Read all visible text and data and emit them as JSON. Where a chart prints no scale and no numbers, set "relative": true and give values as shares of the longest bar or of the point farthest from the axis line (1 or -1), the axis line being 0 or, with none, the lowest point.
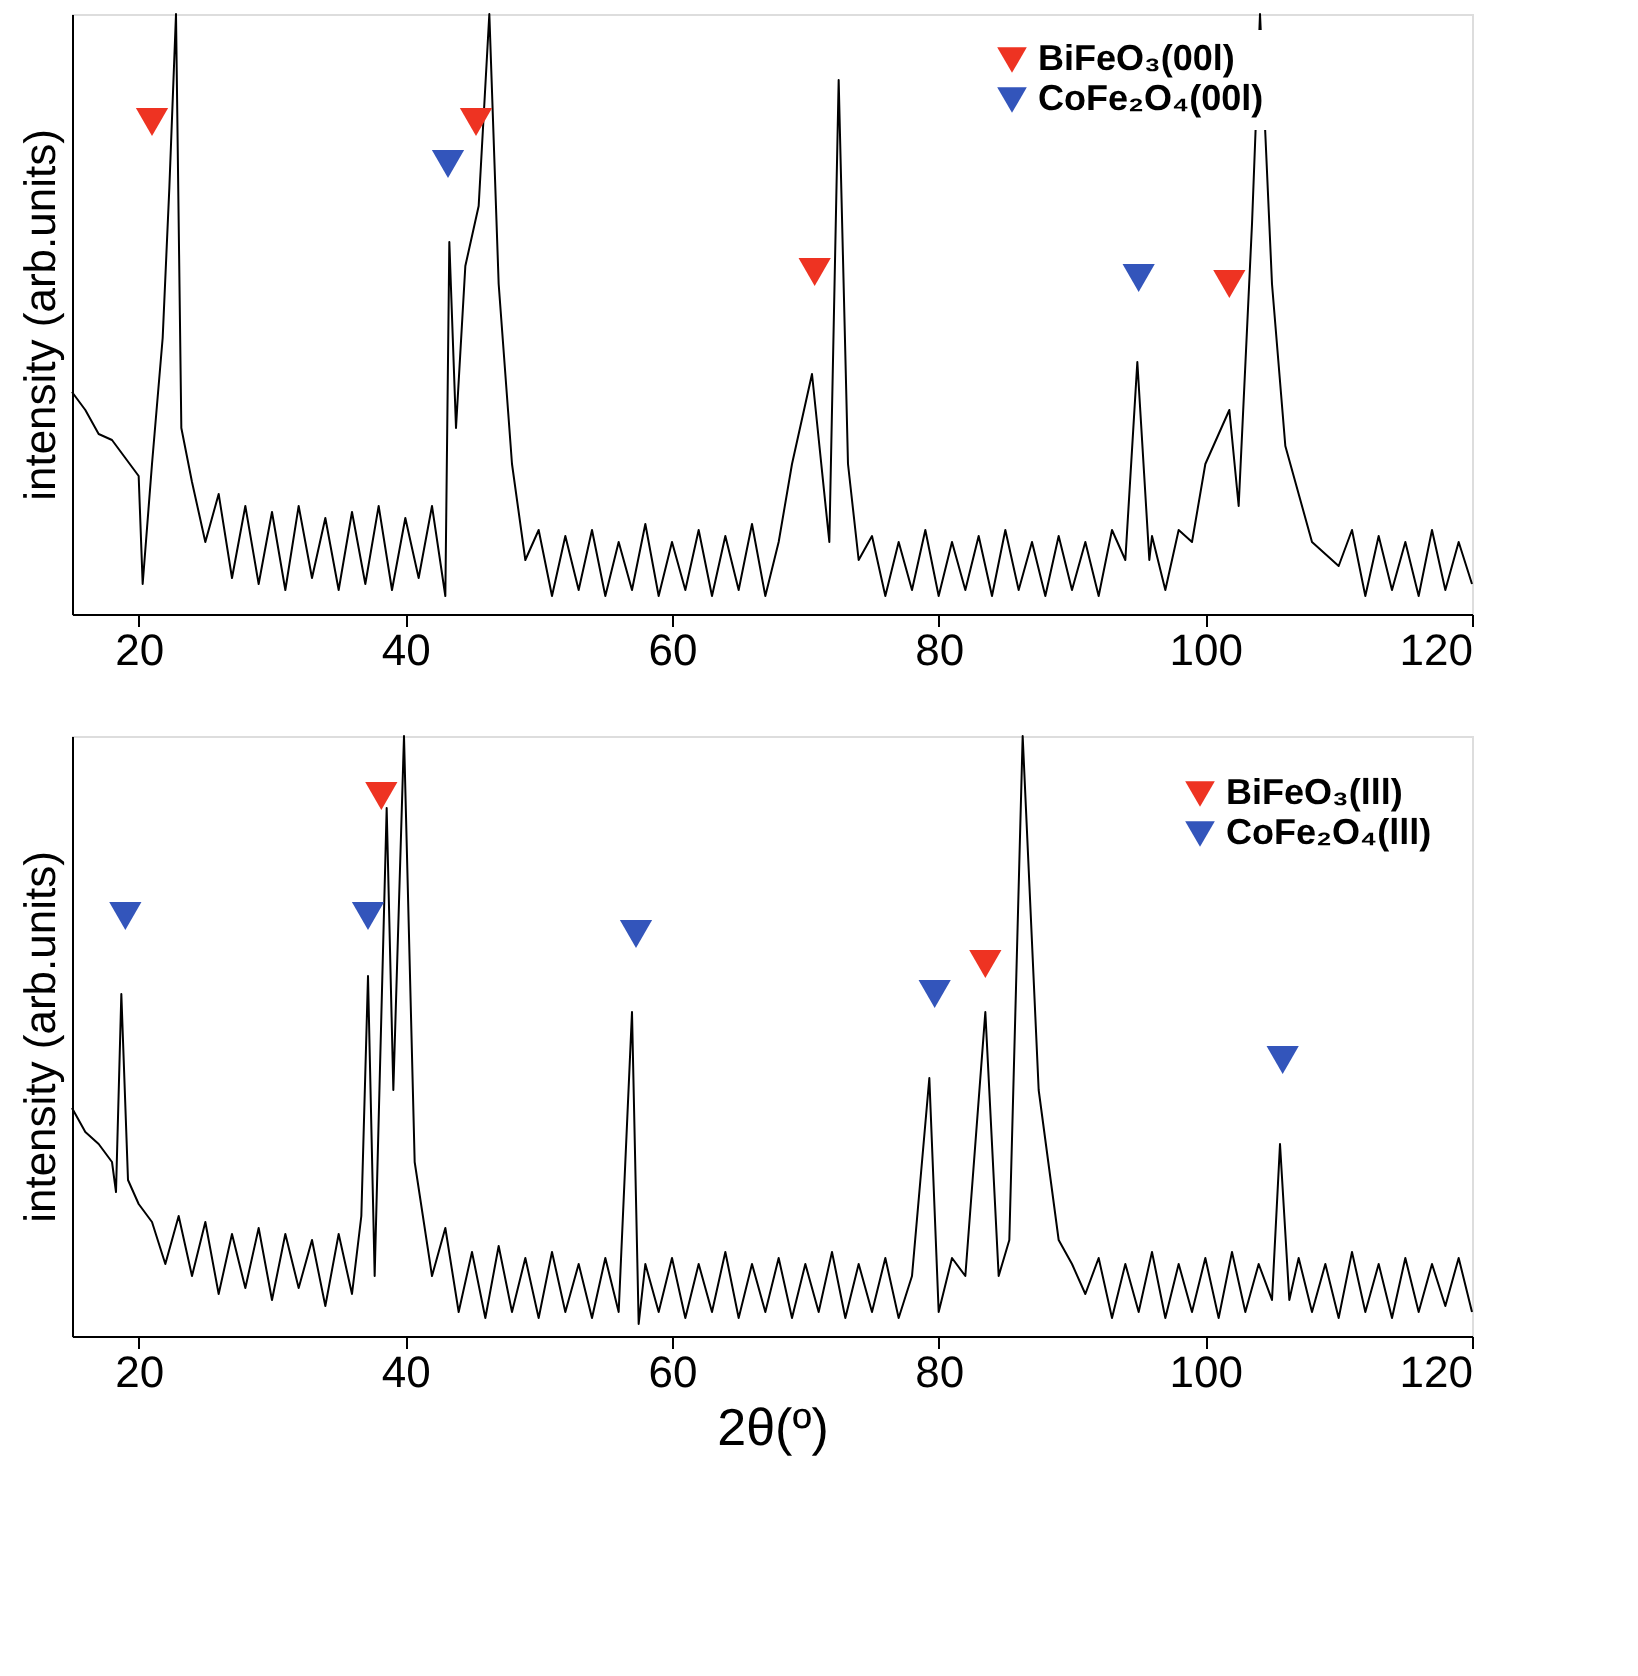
{
  "chart_data": [
    {
      "type": "line",
      "relative": true,
      "ylabel": "intensity (arb.units)",
      "xlim": [
        15,
        120
      ],
      "xticks": [
        20,
        40,
        60,
        80,
        100,
        120
      ],
      "grid": false,
      "legend": "top right",
      "series": [
        {
          "color": "#000000",
          "line_style": "solid",
          "marker": "none",
          "x": [
            15,
            16,
            17,
            18,
            19,
            20,
            20.3,
            21,
            21.8,
            22.3,
            22.8,
            23.2,
            24,
            25,
            26,
            27,
            28,
            29,
            30,
            31,
            32,
            33,
            34,
            35,
            36,
            37,
            38,
            39,
            40,
            41,
            42,
            43,
            43.3,
            43.8,
            44.5,
            45.5,
            46.3,
            47,
            48,
            49,
            50,
            51,
            52,
            53,
            54,
            55,
            56,
            57,
            58,
            59,
            60,
            61,
            62,
            63,
            64,
            65,
            66,
            67,
            68,
            69,
            70.5,
            71.8,
            72.5,
            73.2,
            74,
            75,
            76,
            77,
            78,
            79,
            80,
            81,
            82,
            83,
            84,
            85,
            86,
            87,
            88,
            89,
            90,
            91,
            92,
            93,
            94,
            94.9,
            95.8,
            96,
            97,
            98,
            99,
            100,
            101.8,
            102.5,
            103.5,
            104.1,
            105,
            106,
            108,
            110,
            111,
            112,
            113,
            114,
            115,
            116,
            117,
            118,
            119,
            120
          ],
          "values": [
            0.37,
            0.34,
            0.3,
            0.29,
            0.26,
            0.23,
            0.05,
            0.25,
            0.46,
            0.71,
            1,
            0.31,
            0.22,
            0.12,
            0.2,
            0.06,
            0.18,
            0.05,
            0.17,
            0.04,
            0.18,
            0.06,
            0.16,
            0.04,
            0.17,
            0.05,
            0.18,
            0.04,
            0.16,
            0.06,
            0.18,
            0.03,
            0.62,
            0.31,
            0.58,
            0.68,
            1,
            0.55,
            0.25,
            0.09,
            0.14,
            0.03,
            0.13,
            0.04,
            0.14,
            0.03,
            0.12,
            0.04,
            0.15,
            0.03,
            0.12,
            0.04,
            0.14,
            0.03,
            0.13,
            0.04,
            0.15,
            0.03,
            0.12,
            0.25,
            0.4,
            0.12,
            0.89,
            0.25,
            0.09,
            0.13,
            0.03,
            0.12,
            0.04,
            0.14,
            0.03,
            0.12,
            0.04,
            0.13,
            0.03,
            0.14,
            0.04,
            0.12,
            0.03,
            0.13,
            0.04,
            0.12,
            0.03,
            0.14,
            0.09,
            0.42,
            0.09,
            0.13,
            0.04,
            0.14,
            0.12,
            0.25,
            0.34,
            0.18,
            0.65,
            1,
            0.55,
            0.28,
            0.12,
            0.08,
            0.14,
            0.03,
            0.13,
            0.04,
            0.12,
            0.03,
            0.14,
            0.04,
            0.12,
            0.05
          ]
        },
        {
          "type": "scatter",
          "name": "BiFeO₃(00l)",
          "color": "#ee3322",
          "marker": "triangle",
          "x": [
            21,
            45.3,
            70.7,
            101.8
          ],
          "values": [
            0.82,
            0.82,
            0.57,
            0.55
          ]
        },
        {
          "type": "scatter",
          "name": "CoFe₂O₄(00l)",
          "color": "#3355bb",
          "marker": "triangle",
          "x": [
            43.2,
            95.0
          ],
          "values": [
            0.75,
            0.56
          ]
        }
      ]
    },
    {
      "type": "line",
      "relative": true,
      "ylabel": "intensity (arb.units)",
      "xlabel": "2θ(º)",
      "xlim": [
        15,
        120
      ],
      "xticks": [
        20,
        40,
        60,
        80,
        100,
        120
      ],
      "grid": false,
      "legend": "top right",
      "series": [
        {
          "color": "#000000",
          "line_style": "solid",
          "marker": "none",
          "x": [
            15,
            16,
            17,
            18,
            18.3,
            18.7,
            19.2,
            20,
            21,
            22,
            23,
            24,
            25,
            26,
            27,
            28,
            29,
            30,
            31,
            32,
            33,
            34,
            35,
            36,
            36.7,
            37.2,
            37.7,
            38.6,
            39.1,
            39.9,
            40.7,
            42,
            43,
            44,
            45,
            46,
            47,
            48,
            49,
            50,
            51,
            52,
            53,
            54,
            55,
            56,
            57,
            57.5,
            58,
            59,
            60,
            61,
            62,
            63,
            64,
            65,
            66,
            67,
            68,
            69,
            70,
            71,
            72,
            73,
            74,
            75,
            76,
            77,
            78,
            79.3,
            80,
            81,
            82,
            83.5,
            84.5,
            85.3,
            86.3,
            87.5,
            89,
            90,
            91,
            92,
            93,
            94,
            95,
            96,
            97,
            98,
            99,
            100,
            101,
            102,
            103,
            104,
            105,
            105.6,
            106.3,
            107,
            108,
            109,
            110,
            111,
            112,
            113,
            114,
            115,
            116,
            117,
            118,
            119,
            120
          ],
          "values": [
            0.38,
            0.34,
            0.32,
            0.29,
            0.24,
            0.57,
            0.26,
            0.22,
            0.19,
            0.12,
            0.2,
            0.1,
            0.19,
            0.07,
            0.17,
            0.08,
            0.18,
            0.06,
            0.17,
            0.08,
            0.16,
            0.05,
            0.17,
            0.07,
            0.2,
            0.6,
            0.1,
            0.88,
            0.41,
            1,
            0.29,
            0.1,
            0.18,
            0.04,
            0.14,
            0.03,
            0.15,
            0.04,
            0.13,
            0.03,
            0.14,
            0.04,
            0.12,
            0.03,
            0.13,
            0.04,
            0.54,
            0.02,
            0.12,
            0.04,
            0.13,
            0.03,
            0.12,
            0.04,
            0.14,
            0.03,
            0.12,
            0.04,
            0.13,
            0.03,
            0.12,
            0.04,
            0.14,
            0.03,
            0.12,
            0.04,
            0.13,
            0.03,
            0.1,
            0.43,
            0.04,
            0.13,
            0.1,
            0.54,
            0.1,
            0.16,
            1,
            0.41,
            0.16,
            0.12,
            0.07,
            0.13,
            0.03,
            0.12,
            0.04,
            0.14,
            0.03,
            0.12,
            0.04,
            0.13,
            0.03,
            0.14,
            0.04,
            0.12,
            0.06,
            0.32,
            0.06,
            0.13,
            0.04,
            0.12,
            0.03,
            0.14,
            0.04,
            0.12,
            0.03,
            0.13,
            0.04,
            0.12,
            0.05,
            0.13,
            0.04
          ]
        },
        {
          "type": "scatter",
          "name": "BiFeO₃(lll)",
          "color": "#ee3322",
          "marker": "triangle",
          "x": [
            38.2,
            83.5
          ],
          "values": [
            0.9,
            0.62
          ]
        },
        {
          "type": "scatter",
          "name": "CoFe₂O₄(lll)",
          "color": "#3355bb",
          "marker": "triangle",
          "x": [
            19.0,
            37.2,
            57.3,
            79.7,
            105.8
          ],
          "values": [
            0.7,
            0.7,
            0.67,
            0.57,
            0.46
          ]
        }
      ]
    }
  ]
}
